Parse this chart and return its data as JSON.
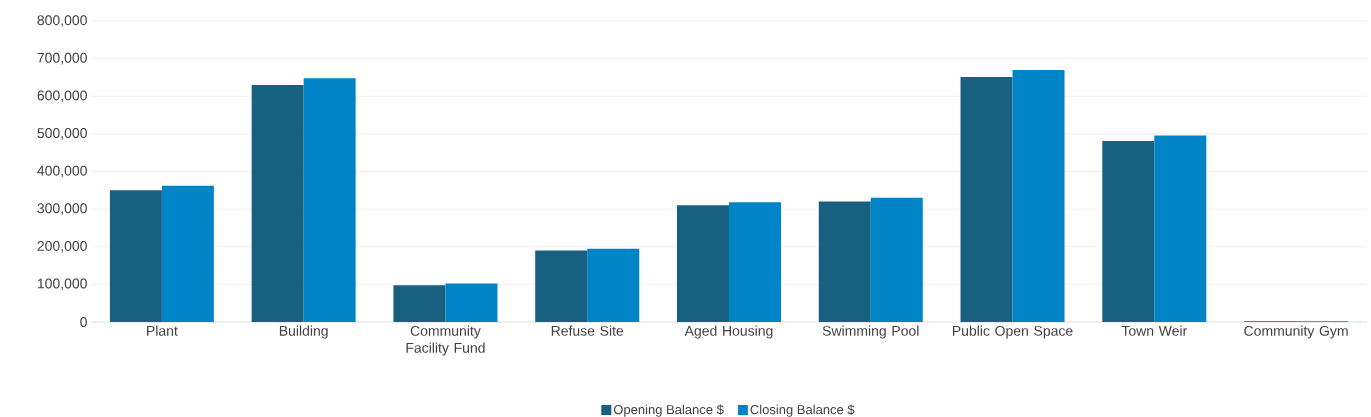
{
  "chart_data": {
    "type": "bar",
    "categories": [
      "Plant",
      "Building",
      "Community Facility Fund",
      "Refuse Site",
      "Aged Housing",
      "Swimming Pool",
      "Public Open Space",
      "Town Weir",
      "Community Gym"
    ],
    "series": [
      {
        "name": "Opening Balance $",
        "color": "#17607f",
        "values": [
          350000,
          630000,
          98000,
          190000,
          310000,
          320000,
          651000,
          481000,
          2000
        ]
      },
      {
        "name": "Closing Balance $",
        "color": "#0084c8",
        "values": [
          362000,
          648000,
          102000,
          195000,
          318000,
          330000,
          670000,
          496000,
          2000
        ]
      }
    ],
    "ylim": [
      0,
      800000
    ],
    "yticks": [
      {
        "value": 0,
        "label": "0"
      },
      {
        "value": 100000,
        "label": "100,000"
      },
      {
        "value": 200000,
        "label": "200,000"
      },
      {
        "value": 300000,
        "label": "300,000"
      },
      {
        "value": 400000,
        "label": "400,000"
      },
      {
        "value": 500000,
        "label": "500,000"
      },
      {
        "value": 600000,
        "label": "600,000"
      },
      {
        "value": 700000,
        "label": "700,000"
      },
      {
        "value": 800000,
        "label": "800,000"
      }
    ],
    "grid": "y",
    "legend": "bottom"
  }
}
